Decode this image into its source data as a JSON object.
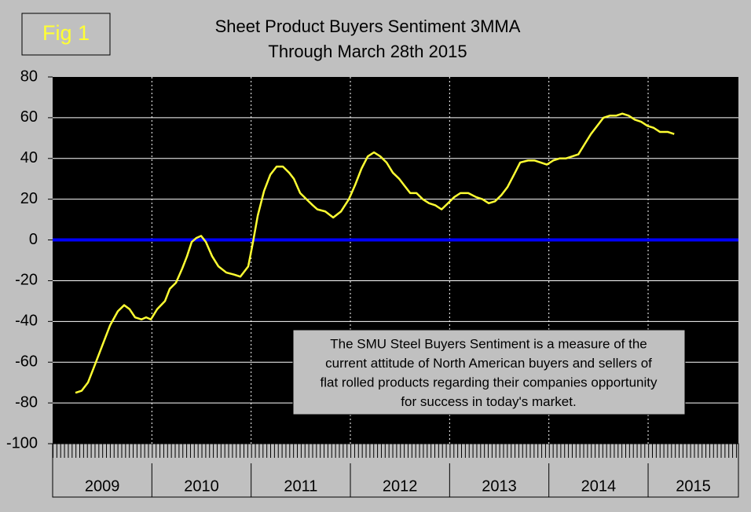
{
  "chart_data": {
    "type": "line",
    "figure_label": "Fig 1",
    "title": "Sheet Product Buyers Sentiment 3MMA",
    "subtitle": "Through March 28th 2015",
    "x": [
      2009.23,
      2009.293,
      2009.356,
      2009.42,
      2009.499,
      2009.578,
      2009.657,
      2009.721,
      2009.776,
      2009.831,
      2009.895,
      2009.942,
      2009.99,
      2010.053,
      2010.132,
      2010.18,
      2010.243,
      2010.306,
      2010.354,
      2010.401,
      2010.449,
      2010.496,
      2010.544,
      2010.607,
      2010.671,
      2010.75,
      2010.829,
      2010.892,
      2010.971,
      2011.019,
      2011.067,
      2011.13,
      2011.193,
      2011.257,
      2011.32,
      2011.383,
      2011.431,
      2011.494,
      2011.557,
      2011.621,
      2011.668,
      2011.747,
      2011.827,
      2011.906,
      2011.985,
      2012.048,
      2012.112,
      2012.175,
      2012.238,
      2012.302,
      2012.365,
      2012.428,
      2012.492,
      2012.539,
      2012.603,
      2012.666,
      2012.729,
      2012.793,
      2012.856,
      2012.919,
      2012.983,
      2013.046,
      2013.109,
      2013.188,
      2013.268,
      2013.331,
      2013.394,
      2013.458,
      2013.521,
      2013.584,
      2013.648,
      2013.711,
      2013.79,
      2013.854,
      2013.917,
      2013.98,
      2014.044,
      2014.107,
      2014.17,
      2014.234,
      2014.297,
      2014.36,
      2014.424,
      2014.487,
      2014.55,
      2014.614,
      2014.677,
      2014.74,
      2014.804,
      2014.867,
      2014.93,
      2014.994,
      2015.057,
      2015.12,
      2015.2,
      2015.263
    ],
    "series": [
      {
        "color": "#ffff33",
        "values": [
          -75,
          -74,
          -70,
          -62,
          -52,
          -42,
          -35,
          -32,
          -34,
          -38,
          -39,
          -38,
          -39,
          -34,
          -30,
          -24,
          -21,
          -14,
          -8,
          -1,
          1,
          2,
          -1,
          -8,
          -13,
          -16,
          -17,
          -18,
          -13,
          -1,
          12,
          24,
          32,
          36,
          36,
          33,
          30,
          23,
          20,
          17,
          15,
          14,
          11,
          14,
          20,
          27,
          35,
          41,
          43,
          41,
          38,
          33,
          30,
          27,
          23,
          23,
          20,
          18,
          17,
          15,
          18,
          21,
          23,
          23,
          21,
          20,
          18,
          19,
          22,
          26,
          32,
          38,
          39,
          39,
          38,
          37,
          39,
          40,
          40,
          41,
          42,
          47,
          52,
          56,
          60,
          61,
          61,
          62,
          61,
          59,
          58,
          56,
          55,
          53,
          53,
          52
        ]
      }
    ],
    "xlim": [
      2009,
      2015.91
    ],
    "xticks": [
      {
        "value": 2009.5,
        "label": "2009"
      },
      {
        "value": 2010.5,
        "label": "2010"
      },
      {
        "value": 2011.5,
        "label": "2011"
      },
      {
        "value": 2012.5,
        "label": "2012"
      },
      {
        "value": 2013.5,
        "label": "2013"
      },
      {
        "value": 2014.5,
        "label": "2014"
      },
      {
        "value": 2015.455,
        "label": "2015"
      }
    ],
    "ylim": [
      -100,
      80
    ],
    "yticks": [
      -100,
      -80,
      -60,
      -40,
      -20,
      0,
      20,
      40,
      60,
      80
    ],
    "reference_line": {
      "value": 0,
      "color": "#0000ff"
    },
    "annotation": [
      "The SMU Steel Buyers Sentiment is a measure of the",
      "current attitude of North American buyers and sellers of",
      "flat rolled products regarding their companies opportunity",
      "for success in today's market."
    ]
  }
}
